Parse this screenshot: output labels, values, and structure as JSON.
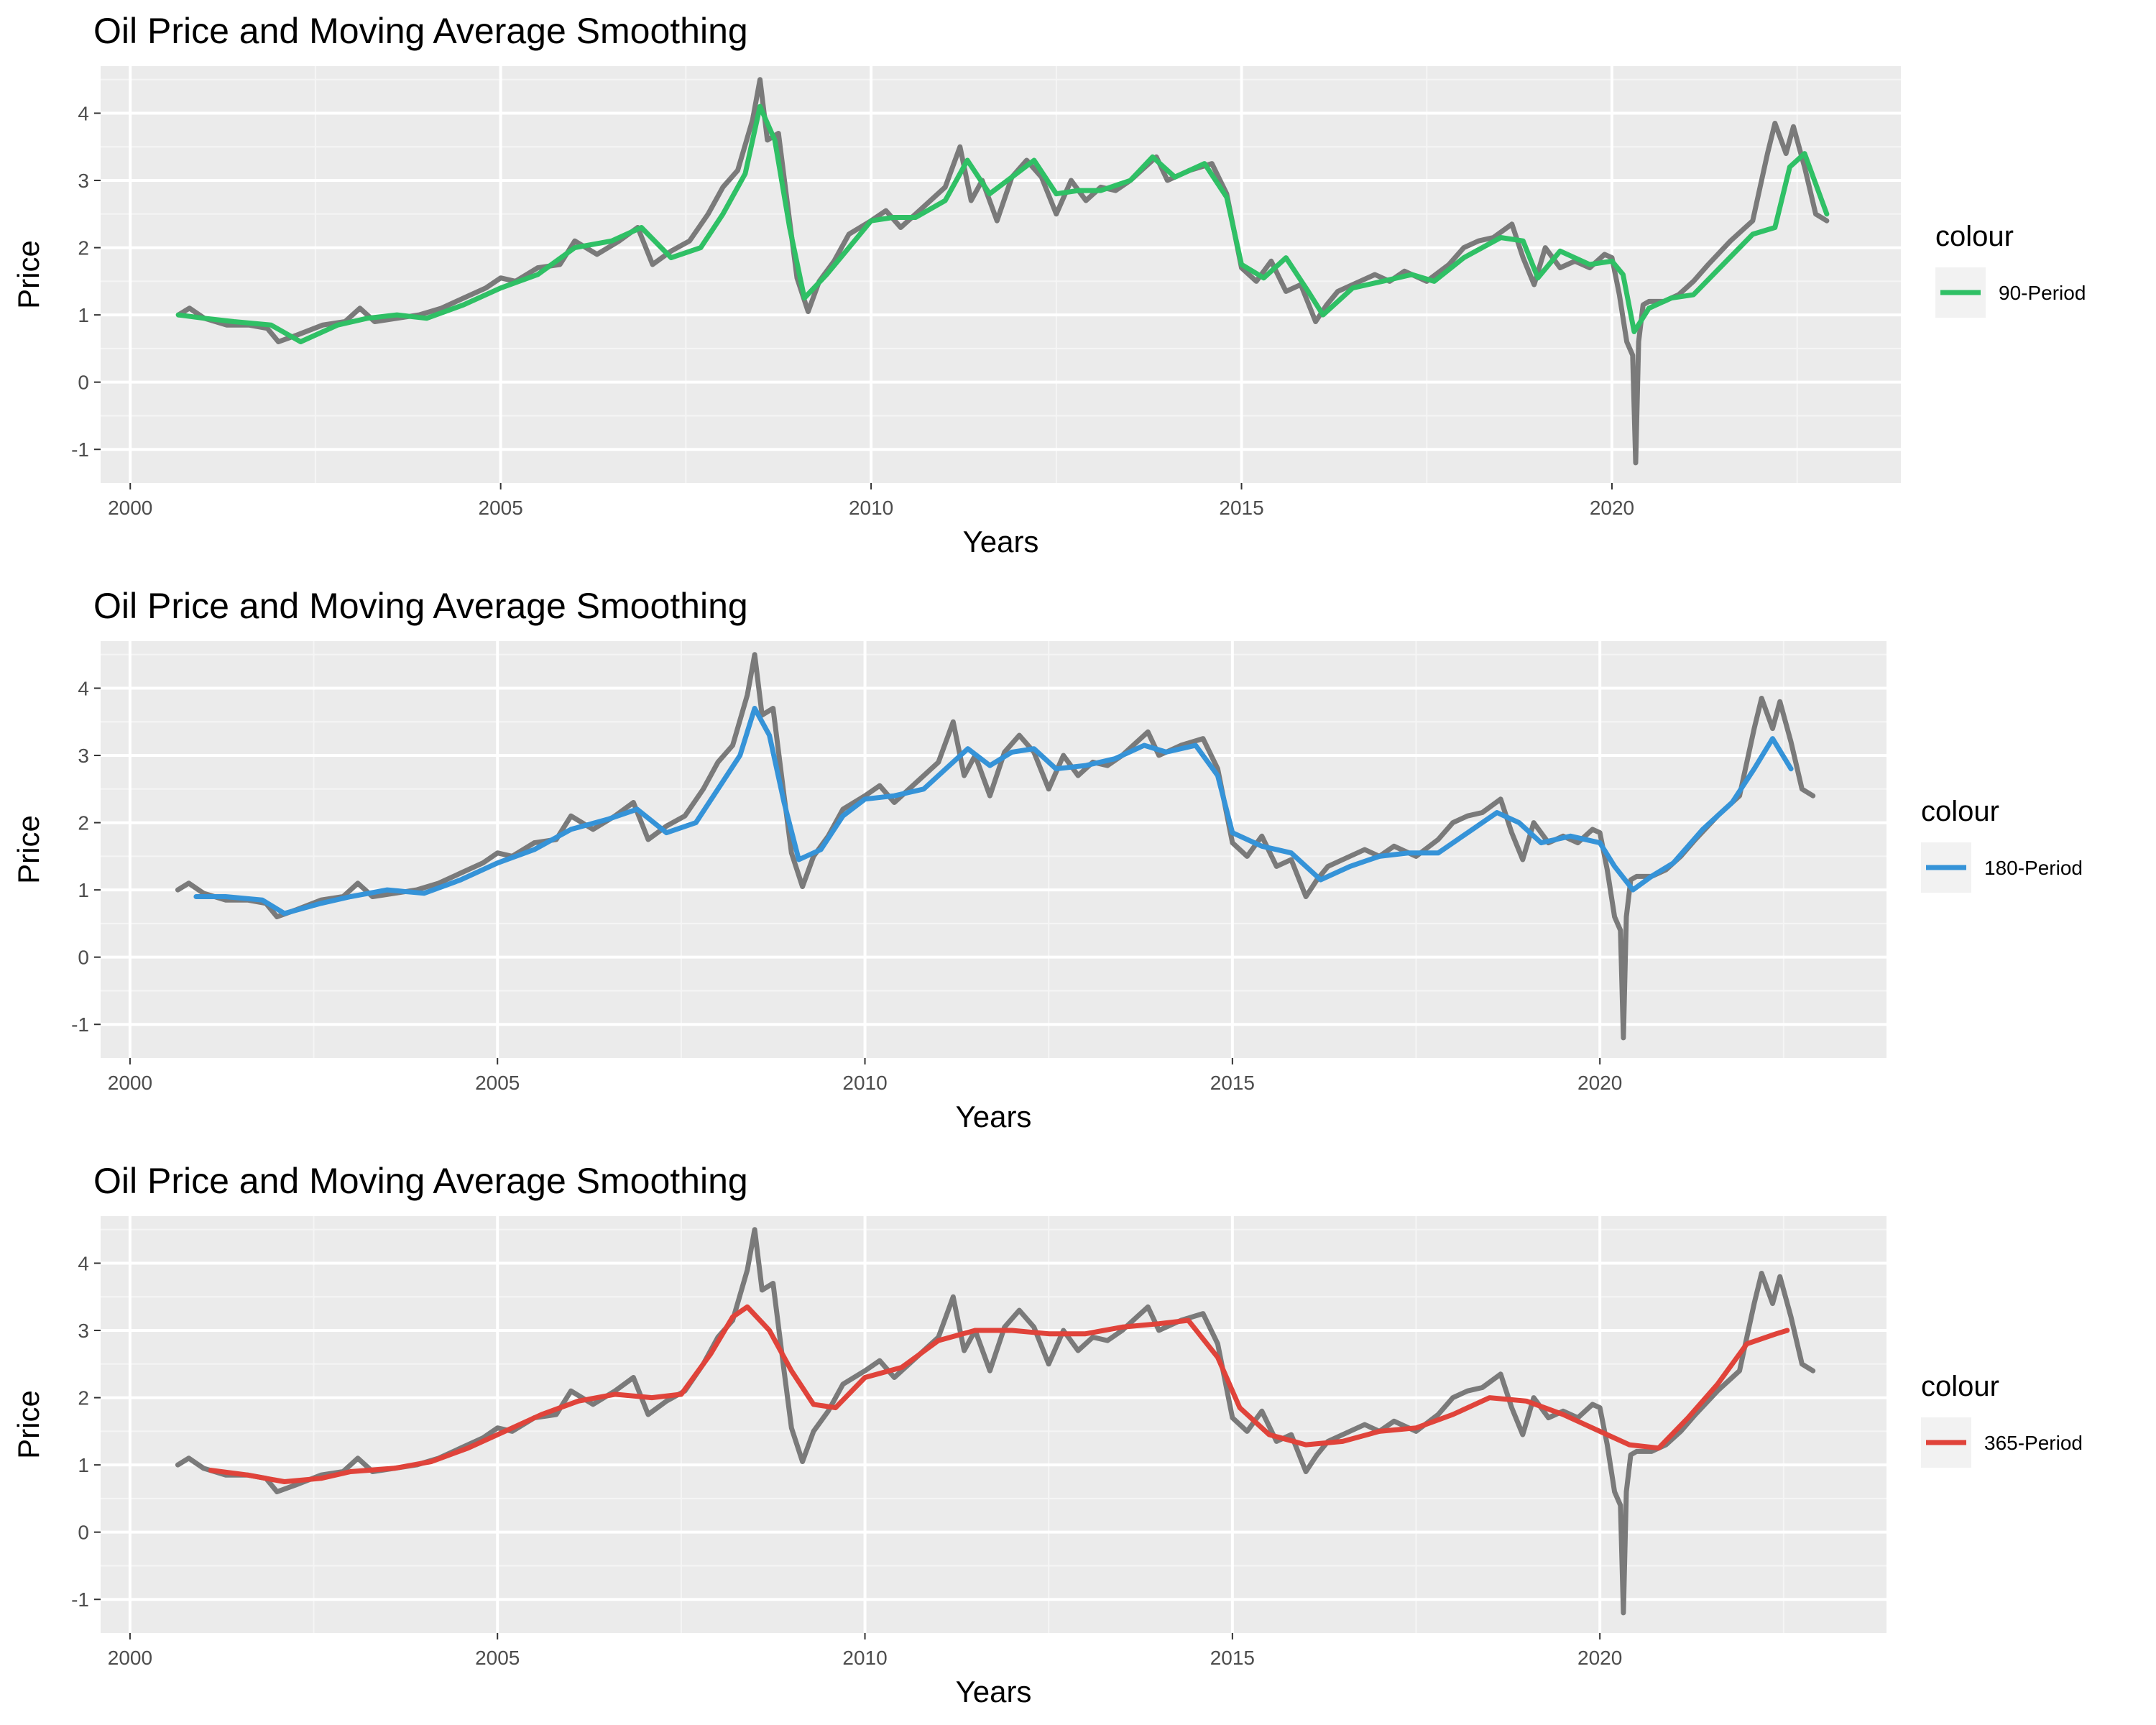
{
  "chart_data": [
    {
      "type": "line",
      "title": "Oil Price and Moving Average Smoothing",
      "xlabel": "Years",
      "ylabel": "Price",
      "xlim": [
        1999.6,
        2023.9
      ],
      "ylim": [
        -1.5,
        4.7
      ],
      "x_ticks": [
        2000,
        2005,
        2010,
        2015,
        2020
      ],
      "y_ticks": [
        -1,
        0,
        1,
        2,
        3,
        4
      ],
      "grid": true,
      "legend": {
        "title": "colour",
        "position": "right"
      },
      "series": [
        {
          "name": "",
          "color": "#7a7a7a",
          "x": [
            2000.65,
            2000.8,
            2001.0,
            2001.3,
            2001.6,
            2001.85,
            2002.0,
            2002.25,
            2002.6,
            2002.9,
            2003.1,
            2003.3,
            2003.6,
            2003.9,
            2004.2,
            2004.5,
            2004.8,
            2005.0,
            2005.2,
            2005.5,
            2005.8,
            2006.0,
            2006.3,
            2006.6,
            2006.85,
            2007.05,
            2007.3,
            2007.55,
            2007.8,
            2008.0,
            2008.2,
            2008.4,
            2008.5,
            2008.6,
            2008.75,
            2008.9,
            2009.0,
            2009.15,
            2009.3,
            2009.5,
            2009.7,
            2010.0,
            2010.2,
            2010.4,
            2010.7,
            2011.0,
            2011.2,
            2011.35,
            2011.5,
            2011.7,
            2011.9,
            2012.1,
            2012.3,
            2012.5,
            2012.7,
            2012.9,
            2013.1,
            2013.3,
            2013.5,
            2013.7,
            2013.85,
            2014.0,
            2014.3,
            2014.6,
            2014.8,
            2015.0,
            2015.2,
            2015.4,
            2015.6,
            2015.8,
            2016.0,
            2016.15,
            2016.3,
            2016.5,
            2016.8,
            2017.0,
            2017.2,
            2017.5,
            2017.8,
            2018.0,
            2018.2,
            2018.4,
            2018.65,
            2018.8,
            2018.95,
            2019.1,
            2019.3,
            2019.5,
            2019.7,
            2019.9,
            2020.0,
            2020.1,
            2020.2,
            2020.28,
            2020.32,
            2020.36,
            2020.42,
            2020.5,
            2020.7,
            2020.9,
            2021.1,
            2021.3,
            2021.6,
            2021.9,
            2022.0,
            2022.1,
            2022.2,
            2022.35,
            2022.45,
            2022.6,
            2022.75,
            2022.9
          ],
          "y": [
            1.0,
            1.1,
            0.95,
            0.85,
            0.85,
            0.8,
            0.6,
            0.7,
            0.85,
            0.9,
            1.1,
            0.9,
            0.95,
            1.0,
            1.1,
            1.25,
            1.4,
            1.55,
            1.5,
            1.7,
            1.75,
            2.1,
            1.9,
            2.1,
            2.3,
            1.75,
            1.95,
            2.1,
            2.5,
            2.9,
            3.15,
            3.9,
            4.5,
            3.6,
            3.7,
            2.4,
            1.55,
            1.05,
            1.5,
            1.8,
            2.2,
            2.4,
            2.55,
            2.3,
            2.6,
            2.9,
            3.5,
            2.7,
            3.0,
            2.4,
            3.05,
            3.3,
            3.05,
            2.5,
            3.0,
            2.7,
            2.9,
            2.85,
            3.0,
            3.2,
            3.35,
            3.0,
            3.15,
            3.25,
            2.8,
            1.7,
            1.5,
            1.8,
            1.35,
            1.45,
            0.9,
            1.15,
            1.35,
            1.45,
            1.6,
            1.5,
            1.65,
            1.5,
            1.75,
            2.0,
            2.1,
            2.15,
            2.35,
            1.85,
            1.45,
            2.0,
            1.7,
            1.8,
            1.7,
            1.9,
            1.85,
            1.3,
            0.6,
            0.4,
            -1.2,
            0.6,
            1.15,
            1.2,
            1.2,
            1.3,
            1.5,
            1.75,
            2.1,
            2.4,
            2.9,
            3.4,
            3.85,
            3.4,
            3.8,
            3.2,
            2.5,
            2.4
          ]
        },
        {
          "name": "90-Period",
          "color": "#2fc065",
          "x": [
            2000.65,
            2001.0,
            2001.4,
            2001.9,
            2002.3,
            2002.8,
            2003.2,
            2003.6,
            2004.0,
            2004.5,
            2005.0,
            2005.5,
            2006.0,
            2006.5,
            2006.9,
            2007.3,
            2007.7,
            2008.0,
            2008.3,
            2008.5,
            2008.7,
            2008.9,
            2009.1,
            2009.4,
            2009.7,
            2010.0,
            2010.3,
            2010.6,
            2011.0,
            2011.3,
            2011.6,
            2011.9,
            2012.2,
            2012.5,
            2012.8,
            2013.1,
            2013.5,
            2013.8,
            2014.1,
            2014.5,
            2014.8,
            2015.0,
            2015.3,
            2015.6,
            2015.9,
            2016.1,
            2016.5,
            2016.9,
            2017.3,
            2017.6,
            2018.0,
            2018.5,
            2018.8,
            2019.0,
            2019.3,
            2019.7,
            2020.0,
            2020.15,
            2020.3,
            2020.5,
            2020.8,
            2021.1,
            2021.5,
            2021.9,
            2022.2,
            2022.4,
            2022.6,
            2022.9
          ],
          "y": [
            1.0,
            0.95,
            0.9,
            0.85,
            0.6,
            0.85,
            0.95,
            1.0,
            0.95,
            1.15,
            1.4,
            1.6,
            2.0,
            2.1,
            2.3,
            1.85,
            2.0,
            2.5,
            3.1,
            4.1,
            3.6,
            2.3,
            1.25,
            1.6,
            2.0,
            2.4,
            2.45,
            2.45,
            2.7,
            3.3,
            2.8,
            3.05,
            3.3,
            2.8,
            2.85,
            2.85,
            3.0,
            3.35,
            3.05,
            3.25,
            2.75,
            1.75,
            1.55,
            1.85,
            1.35,
            1.0,
            1.4,
            1.5,
            1.6,
            1.5,
            1.85,
            2.15,
            2.1,
            1.55,
            1.95,
            1.75,
            1.8,
            1.6,
            0.75,
            1.1,
            1.25,
            1.3,
            1.75,
            2.2,
            2.3,
            3.2,
            3.4,
            2.5
          ]
        },
        {
          "name": "180-Period",
          "color": "#3593d8",
          "x": [
            2000.9,
            2001.3,
            2001.8,
            2002.1,
            2002.6,
            2003.0,
            2003.5,
            2004.0,
            2004.5,
            2005.0,
            2005.5,
            2006.0,
            2006.5,
            2006.9,
            2007.3,
            2007.7,
            2008.0,
            2008.3,
            2008.5,
            2008.7,
            2008.9,
            2009.1,
            2009.4,
            2009.7,
            2010.0,
            2010.4,
            2010.8,
            2011.1,
            2011.4,
            2011.7,
            2012.0,
            2012.3,
            2012.6,
            2013.0,
            2013.4,
            2013.8,
            2014.1,
            2014.5,
            2014.8,
            2015.0,
            2015.4,
            2015.8,
            2016.2,
            2016.6,
            2017.0,
            2017.4,
            2017.8,
            2018.2,
            2018.6,
            2018.9,
            2019.2,
            2019.6,
            2020.0,
            2020.2,
            2020.45,
            2020.7,
            2021.0,
            2021.4,
            2021.8,
            2022.1,
            2022.35,
            2022.6
          ],
          "y": [
            0.9,
            0.9,
            0.85,
            0.65,
            0.8,
            0.9,
            1.0,
            0.95,
            1.15,
            1.4,
            1.6,
            1.9,
            2.05,
            2.2,
            1.85,
            2.0,
            2.5,
            3.0,
            3.7,
            3.3,
            2.3,
            1.45,
            1.6,
            2.1,
            2.35,
            2.4,
            2.5,
            2.8,
            3.1,
            2.85,
            3.05,
            3.1,
            2.8,
            2.85,
            2.95,
            3.15,
            3.05,
            3.15,
            2.7,
            1.85,
            1.65,
            1.55,
            1.15,
            1.35,
            1.5,
            1.55,
            1.55,
            1.85,
            2.15,
            2.0,
            1.7,
            1.8,
            1.7,
            1.35,
            1.0,
            1.2,
            1.4,
            1.9,
            2.3,
            2.8,
            3.25,
            2.8
          ]
        },
        {
          "name": "365-Period",
          "color": "#e0433a",
          "x": [
            2001.1,
            2001.6,
            2002.1,
            2002.6,
            2003.0,
            2003.6,
            2004.1,
            2004.6,
            2005.1,
            2005.6,
            2006.1,
            2006.6,
            2007.1,
            2007.5,
            2007.9,
            2008.2,
            2008.4,
            2008.7,
            2009.0,
            2009.3,
            2009.6,
            2010.0,
            2010.5,
            2011.0,
            2011.5,
            2012.0,
            2012.5,
            2013.0,
            2013.5,
            2014.0,
            2014.4,
            2014.8,
            2015.1,
            2015.5,
            2016.0,
            2016.5,
            2017.0,
            2017.5,
            2018.0,
            2018.5,
            2019.0,
            2019.5,
            2020.0,
            2020.4,
            2020.8,
            2021.2,
            2021.6,
            2022.0,
            2022.4,
            2022.55
          ],
          "y": [
            0.92,
            0.85,
            0.75,
            0.8,
            0.9,
            0.95,
            1.05,
            1.25,
            1.5,
            1.75,
            1.95,
            2.05,
            2.0,
            2.05,
            2.65,
            3.2,
            3.35,
            3.0,
            2.4,
            1.9,
            1.85,
            2.3,
            2.45,
            2.85,
            3.0,
            3.0,
            2.95,
            2.95,
            3.05,
            3.1,
            3.15,
            2.6,
            1.85,
            1.45,
            1.3,
            1.35,
            1.5,
            1.55,
            1.75,
            2.0,
            1.95,
            1.75,
            1.5,
            1.3,
            1.25,
            1.7,
            2.2,
            2.8,
            2.95,
            3.0
          ]
        }
      ]
    }
  ],
  "panels": [
    {
      "title": "Oil Price and Moving Average Smoothing",
      "xlabel": "Years",
      "ylabel": "Price",
      "legend_title": "colour",
      "legend_label": "90-Period",
      "legend_color": "#2fc065",
      "ma_series": 1
    },
    {
      "title": "Oil Price and Moving Average Smoothing",
      "xlabel": "Years",
      "ylabel": "Price",
      "legend_title": "colour",
      "legend_label": "180-Period",
      "legend_color": "#3593d8",
      "ma_series": 2
    },
    {
      "title": "Oil Price and Moving Average Smoothing",
      "xlabel": "Years",
      "ylabel": "Price",
      "legend_title": "colour",
      "legend_label": "365-Period",
      "legend_color": "#e0433a",
      "ma_series": 3
    }
  ]
}
